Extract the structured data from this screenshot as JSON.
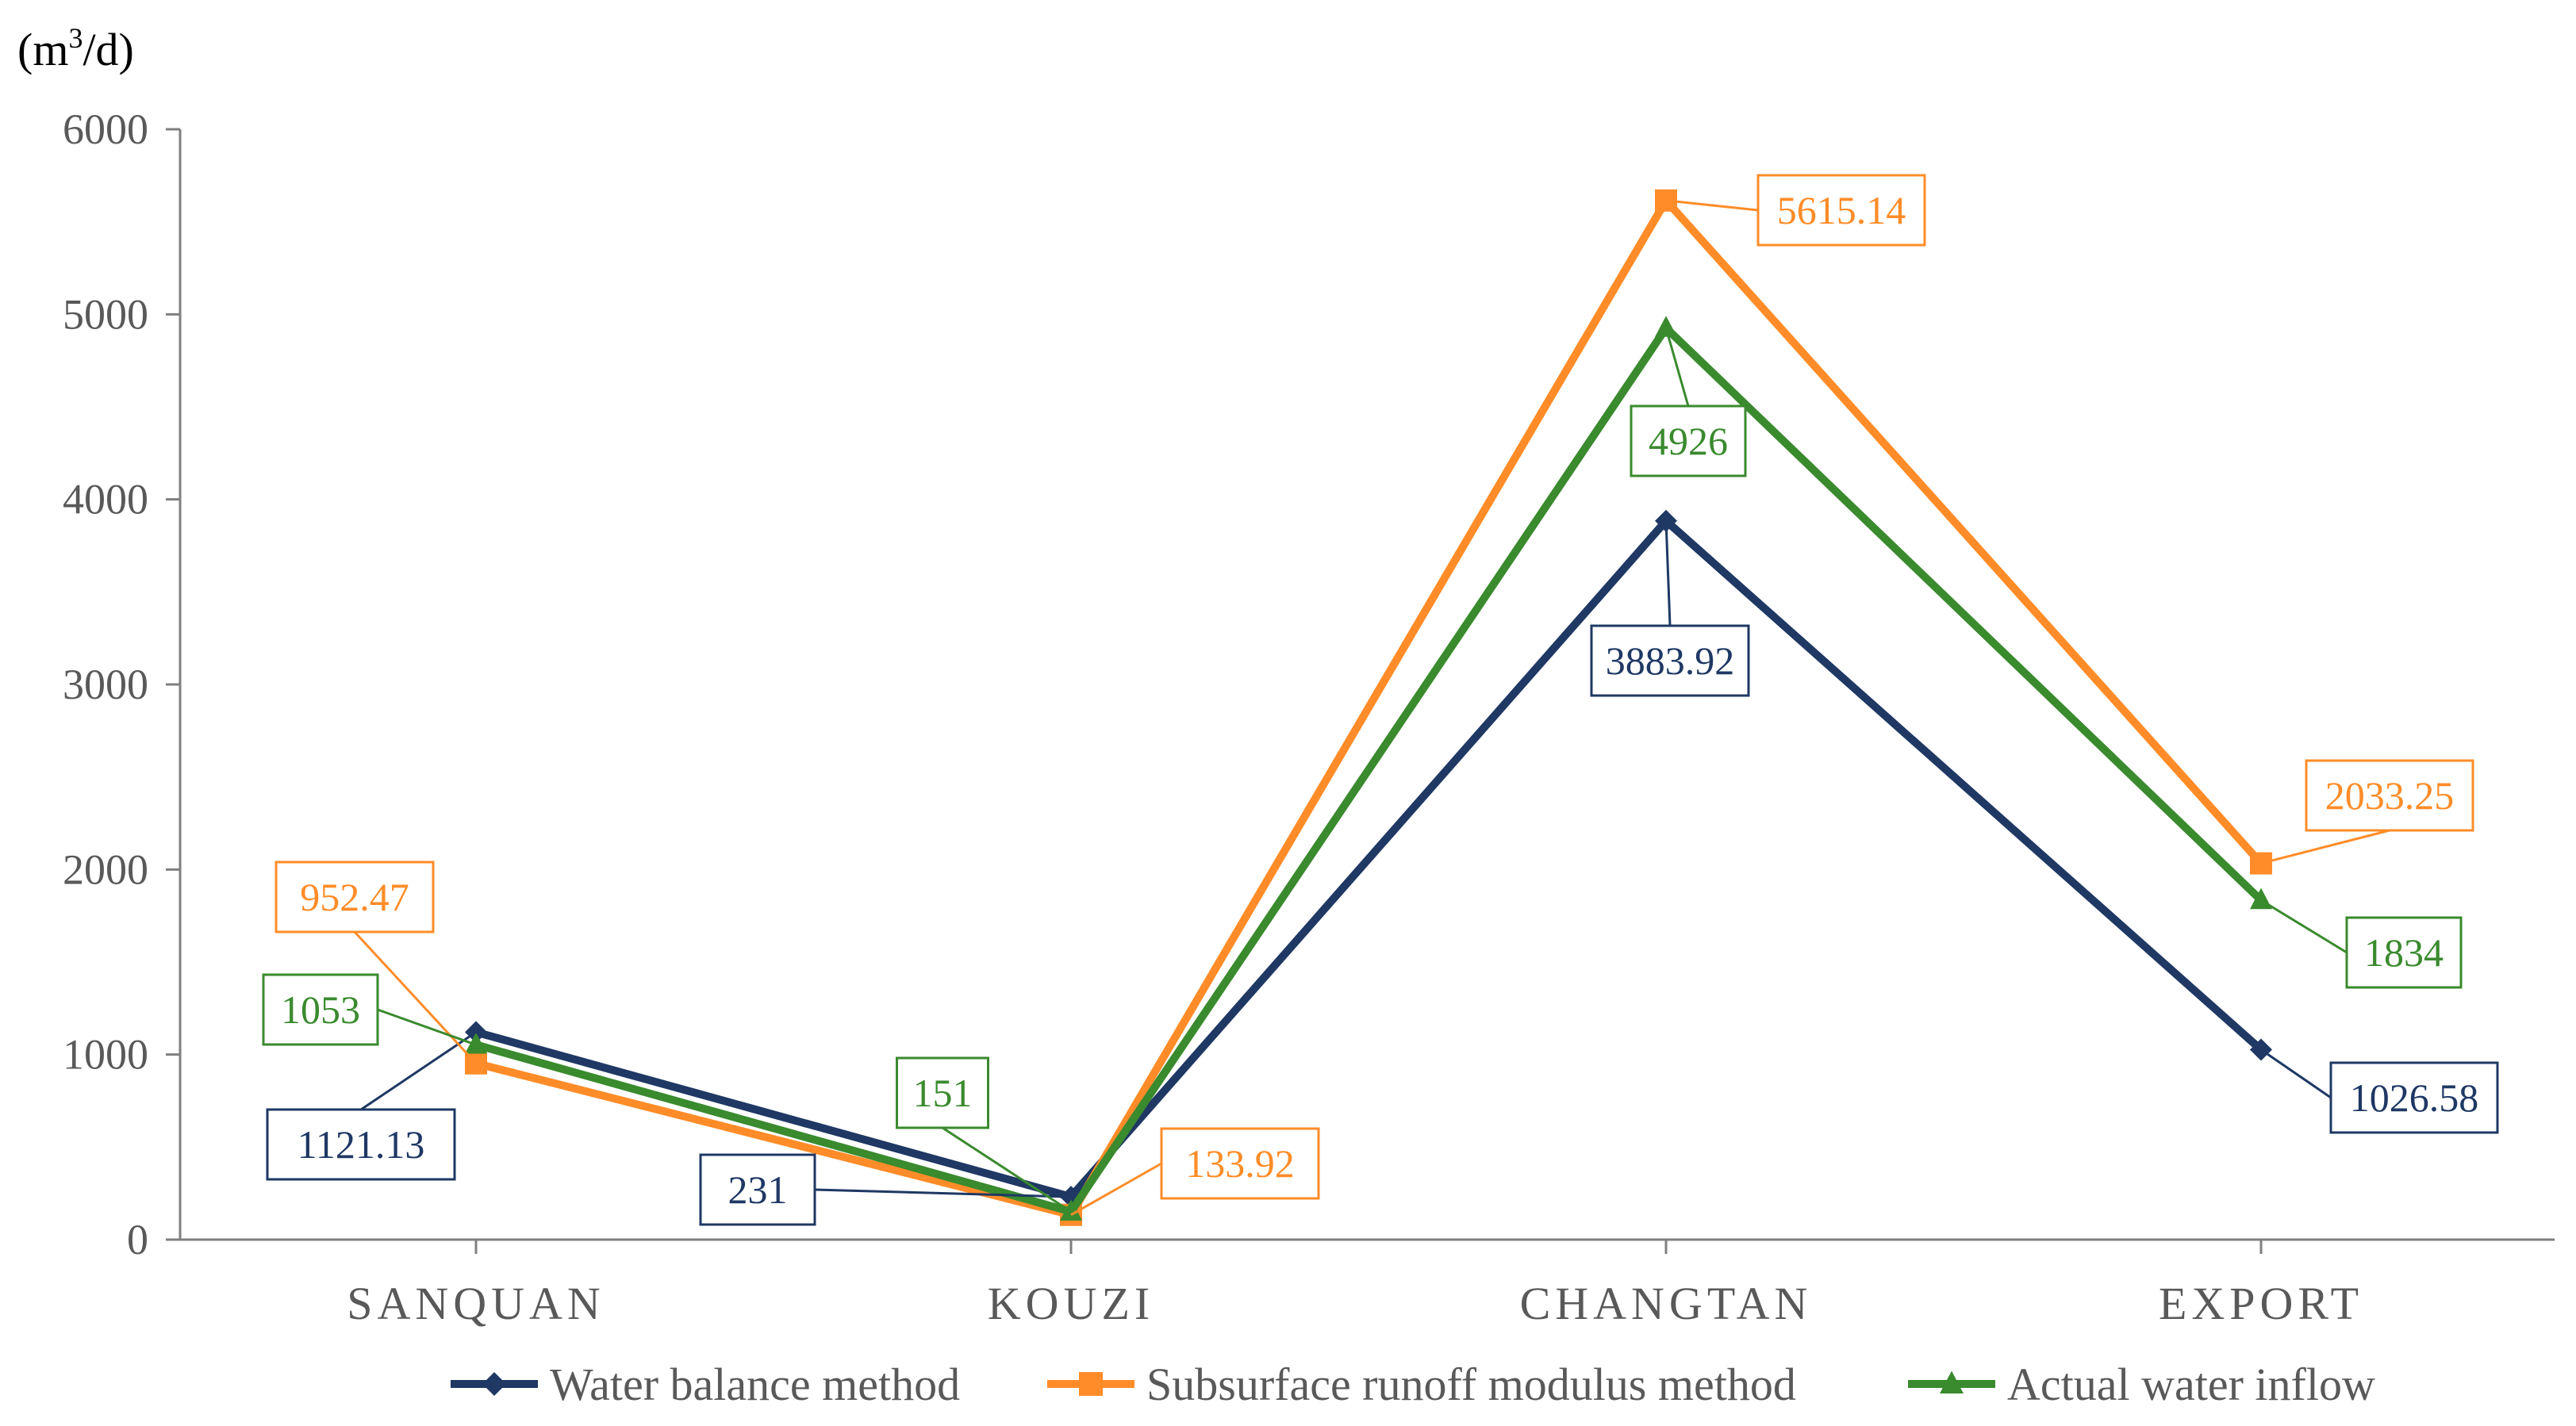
{
  "chart_data": {
    "type": "line",
    "unit_label": {
      "open": "(m",
      "sup": "3",
      "close": "/d)"
    },
    "categories": [
      "SANQUAN",
      "KOUZI",
      "CHANGTAN",
      "EXPORT"
    ],
    "ylim": [
      0,
      6000
    ],
    "yticks": [
      0,
      1000,
      2000,
      3000,
      4000,
      5000,
      6000
    ],
    "ytick_labels": [
      "0",
      "1000",
      "2000",
      "3000",
      "4000",
      "5000",
      "6000"
    ],
    "grid": false,
    "legend": "bottom",
    "series": [
      {
        "name": "Water balance method",
        "color": "#1f3864",
        "marker": "diamond",
        "values": [
          1121.13,
          231,
          3883.92,
          1026.58
        ],
        "labels": [
          "1121.13",
          "231",
          "3883.92",
          "1026.58"
        ]
      },
      {
        "name": "Subsurface runoff modulus method",
        "color": "#ff8c28",
        "marker": "square",
        "values": [
          952.47,
          133.92,
          5615.14,
          2033.25
        ],
        "labels": [
          "952.47",
          "133.92",
          "5615.14",
          "2033.25"
        ]
      },
      {
        "name": "Actual water inflow",
        "color": "#3a8a2e",
        "marker": "triangle",
        "values": [
          1053,
          151,
          4926,
          1834
        ],
        "labels": [
          "1053",
          "151",
          "4926",
          "1834"
        ]
      }
    ]
  }
}
